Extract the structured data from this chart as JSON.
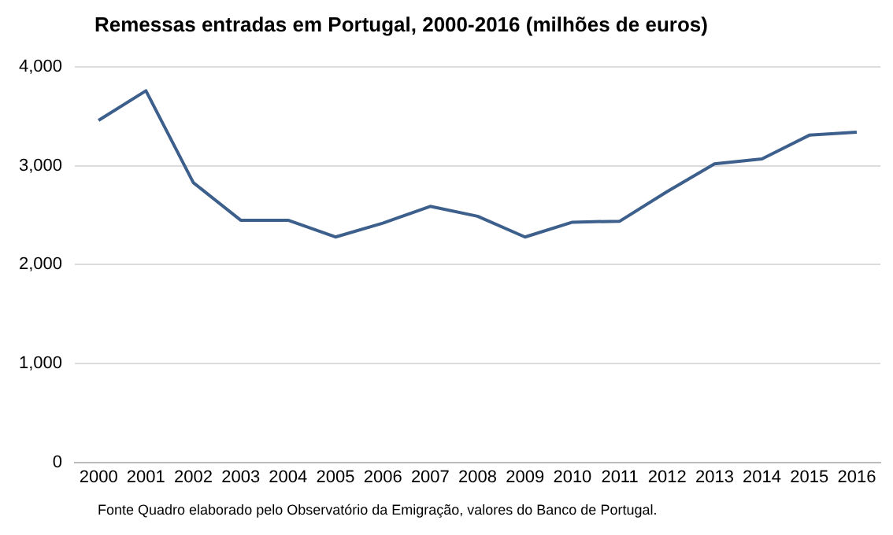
{
  "chart_data": {
    "type": "line",
    "title": "Remessas  entradas em Portugal, 2000-2016  (milhões de euros)",
    "categories": [
      "2000",
      "2001",
      "2002",
      "2003",
      "2004",
      "2005",
      "2006",
      "2007",
      "2008",
      "2009",
      "2010",
      "2011",
      "2012",
      "2013",
      "2014",
      "2015",
      "2016"
    ],
    "series": [
      {
        "color": "#3d5f8c",
        "values": [
          3460,
          3760,
          2830,
          2450,
          2450,
          2280,
          2420,
          2590,
          2490,
          2280,
          2430,
          2440,
          2740,
          3020,
          3070,
          3310,
          3340
        ]
      }
    ],
    "ylim": [
      0,
      4000
    ],
    "yticks": [
      {
        "value": 0,
        "label": "0"
      },
      {
        "value": 1000,
        "label": "1,000"
      },
      {
        "value": 2000,
        "label": "2,000"
      },
      {
        "value": 3000,
        "label": "3,000"
      },
      {
        "value": 4000,
        "label": "4,000"
      }
    ],
    "grid": "y",
    "legend": false,
    "marker": "none",
    "line_style": "solid",
    "annotations": [
      "Fonte  Quadro elaborado pelo Observatório da Emigração, valores do Banco de Portugal."
    ]
  }
}
